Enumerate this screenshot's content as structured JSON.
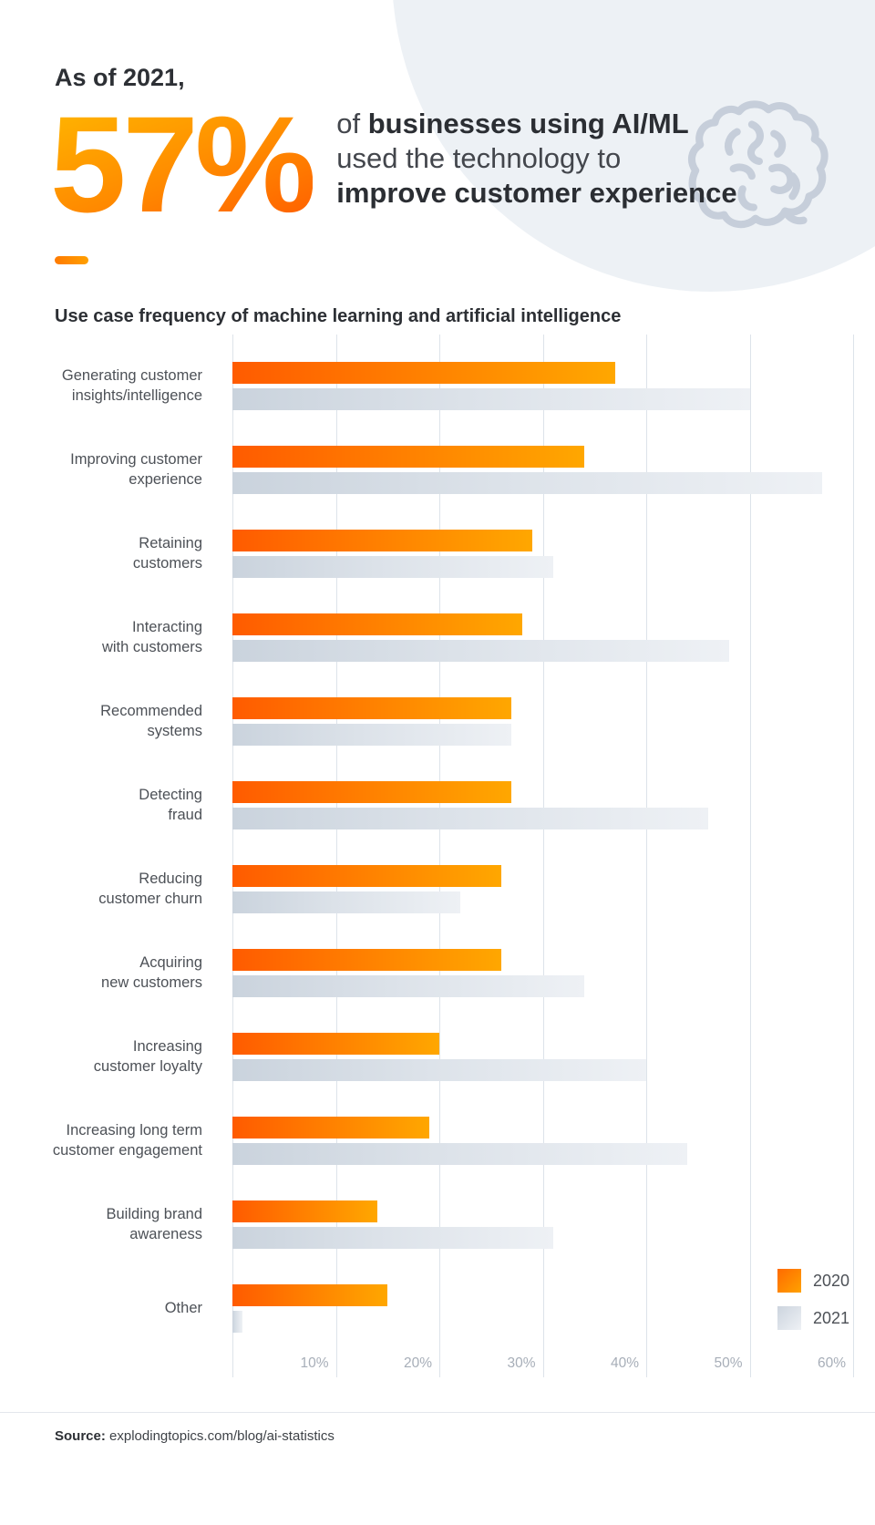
{
  "header": {
    "kicker": "As of 2021,",
    "stat_value": "57%",
    "line1_prefix": "of ",
    "line1_bold": "businesses using AI/ML",
    "line2": "used the technology to",
    "line3_bold": "improve customer experience"
  },
  "chart_data": {
    "type": "bar",
    "orientation": "horizontal",
    "title": "Use case frequency of machine learning and artificial intelligence",
    "categories": [
      "Generating customer\ninsights/intelligence",
      "Improving customer\nexperience",
      "Retaining\ncustomers",
      "Interacting\nwith customers",
      "Recommended\nsystems",
      "Detecting\nfraud",
      "Reducing\ncustomer churn",
      "Acquiring\nnew customers",
      "Increasing\ncustomer loyalty",
      "Increasing long term\ncustomer engagement",
      "Building brand\nawareness",
      "Other"
    ],
    "series": [
      {
        "name": "2020",
        "values": [
          37,
          34,
          29,
          28,
          27,
          27,
          26,
          26,
          20,
          19,
          14,
          15
        ]
      },
      {
        "name": "2021",
        "values": [
          50,
          57,
          31,
          48,
          27,
          46,
          22,
          34,
          40,
          44,
          31,
          1
        ]
      }
    ],
    "value_unit": "%",
    "xlim": [
      0,
      60
    ],
    "x_tick_labels": [
      "10%",
      "20%",
      "30%",
      "40%",
      "50%",
      "60%"
    ],
    "grid": "vertical",
    "legend_position": "bottom-right"
  },
  "colors": {
    "bar_2020_start": "#ff5b00",
    "bar_2020_end": "#ffa700",
    "bar_2021_start": "#cad3dd",
    "bar_2021_end": "#eef1f5",
    "stat_gradient_start": "#ffb300",
    "stat_gradient_end": "#ff5f00",
    "gridline": "#dde3ea",
    "background_circle": "#edf1f5",
    "brain_outline": "#c6ceda"
  },
  "footer": {
    "source_label": "Source:",
    "source_text": "explodingtopics.com/blog/ai-statistics"
  }
}
